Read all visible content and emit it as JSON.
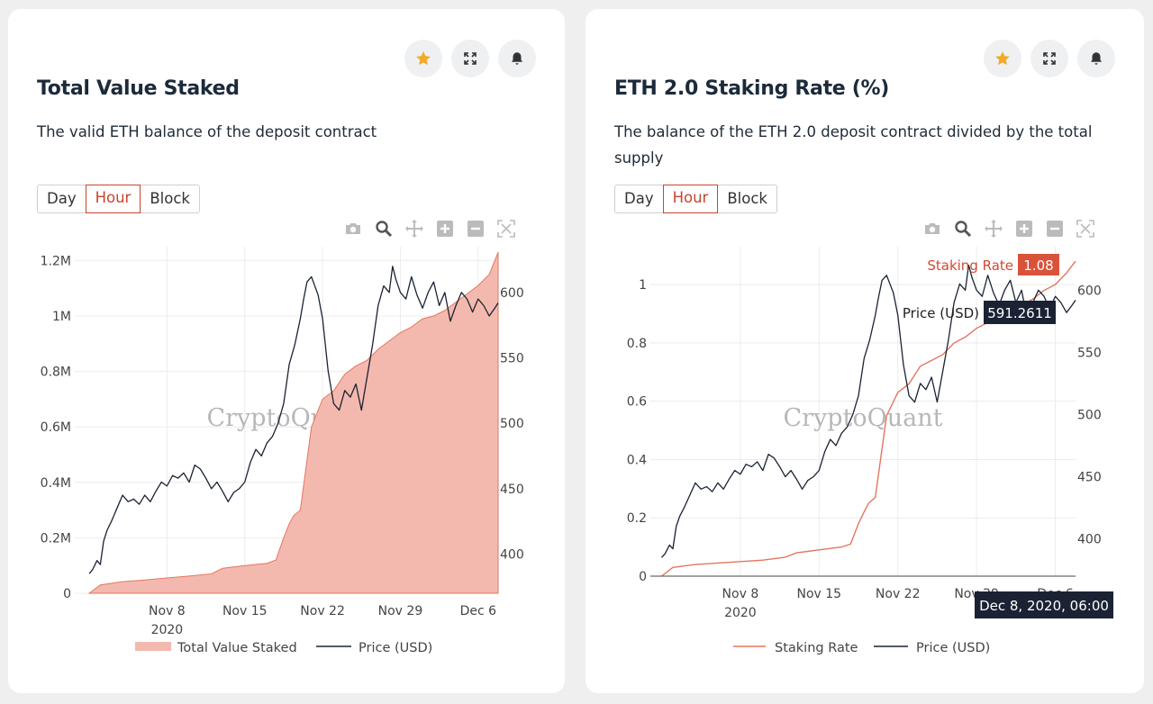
{
  "cards": [
    {
      "title": "Total Value Staked",
      "description": "The valid ETH balance of the deposit contract",
      "timeframes": [
        "Day",
        "Hour",
        "Block"
      ],
      "active_timeframe": "Hour",
      "actions": [
        "star-icon",
        "expand-icon",
        "bell-icon"
      ],
      "modebar": [
        "camera-icon",
        "zoom-icon",
        "pan-icon",
        "zoom-in-icon",
        "zoom-out-icon",
        "autoscale-icon"
      ]
    },
    {
      "title": "ETH 2.0 Staking Rate (%)",
      "description": "The balance of the ETH 2.0 deposit contract divided by the total supply",
      "timeframes": [
        "Day",
        "Hour",
        "Block"
      ],
      "active_timeframe": "Hour",
      "actions": [
        "star-icon",
        "expand-icon",
        "bell-icon"
      ],
      "modebar": [
        "camera-icon",
        "zoom-icon",
        "pan-icon",
        "zoom-in-icon",
        "zoom-out-icon",
        "autoscale-icon"
      ]
    }
  ],
  "watermark": "CryptoQuant",
  "colors": {
    "accent": "#c8452d",
    "area_fill": "#f4b9ae",
    "line": "#e2775f",
    "price": "#1a2233",
    "star": "#f4a927"
  },
  "chart_data": [
    {
      "type": "area",
      "x_ticks": [
        "Nov 8",
        "Nov 15",
        "Nov 22",
        "Nov 29",
        "Dec 6"
      ],
      "x_tick_year": "2020",
      "y_left_ticks": [
        "0",
        "0.2M",
        "0.4M",
        "0.6M",
        "0.8M",
        "1M",
        "1.2M"
      ],
      "y_right_ticks": [
        "400",
        "450",
        "500",
        "550",
        "600"
      ],
      "ylim_left": [
        0,
        1250000
      ],
      "ylim_right": [
        370,
        635
      ],
      "series": [
        {
          "name": "Total Value Staked",
          "axis": "left",
          "x": [
            0,
            1,
            3,
            5,
            7,
            9,
            11,
            12,
            14,
            16,
            16.8,
            17.5,
            18,
            18.4,
            19,
            20,
            21,
            22,
            23,
            24,
            25,
            26,
            27,
            28,
            29,
            30,
            31,
            32,
            33,
            34,
            35,
            36,
            36.8
          ],
          "values": [
            0,
            30000,
            42000,
            48000,
            55000,
            62000,
            70000,
            90000,
            100000,
            108000,
            120000,
            200000,
            250000,
            280000,
            300000,
            600000,
            700000,
            730000,
            790000,
            820000,
            840000,
            880000,
            910000,
            940000,
            960000,
            990000,
            1000000,
            1020000,
            1050000,
            1080000,
            1110000,
            1150000,
            1230000
          ]
        },
        {
          "name": "Price (USD)",
          "axis": "right",
          "x": [
            0,
            0.3,
            0.7,
            1,
            1.3,
            1.6,
            2,
            2.5,
            3,
            3.5,
            4,
            4.5,
            5,
            5.5,
            6,
            6.5,
            7,
            7.5,
            8,
            8.5,
            9,
            9.5,
            10,
            10.5,
            11,
            11.5,
            12,
            12.5,
            13,
            13.5,
            14,
            14.5,
            15,
            15.5,
            16,
            16.5,
            17,
            17.5,
            18,
            18.5,
            19,
            19.3,
            19.6,
            20,
            20.3,
            20.6,
            21,
            21.5,
            22,
            22.5,
            23,
            23.5,
            24,
            24.5,
            25,
            25.5,
            26,
            26.5,
            27,
            27.3,
            27.6,
            28,
            28.5,
            29,
            29.5,
            30,
            30.5,
            31,
            31.5,
            32,
            32.5,
            33,
            33.5,
            34,
            34.5,
            35,
            35.5,
            36,
            36.5,
            36.8
          ],
          "values": [
            385,
            388,
            395,
            392,
            410,
            418,
            425,
            435,
            445,
            440,
            442,
            438,
            445,
            440,
            448,
            455,
            452,
            460,
            458,
            462,
            455,
            468,
            465,
            458,
            450,
            455,
            448,
            440,
            447,
            450,
            455,
            470,
            480,
            475,
            485,
            490,
            500,
            515,
            545,
            560,
            580,
            595,
            608,
            612,
            605,
            598,
            580,
            540,
            515,
            510,
            525,
            520,
            530,
            510,
            535,
            560,
            590,
            605,
            600,
            620,
            610,
            600,
            595,
            612,
            598,
            588,
            600,
            608,
            590,
            600,
            578,
            590,
            600,
            595,
            585,
            595,
            590,
            582,
            588,
            592
          ]
        }
      ],
      "legend": [
        "Total Value Staked",
        "Price (USD)"
      ]
    },
    {
      "type": "line",
      "x_ticks": [
        "Nov 8",
        "Nov 15",
        "Nov 22",
        "Nov 29",
        "Dec 6"
      ],
      "x_tick_year": "2020",
      "y_left_ticks": [
        "0",
        "0.2",
        "0.4",
        "0.6",
        "0.8",
        "1"
      ],
      "y_right_ticks": [
        "400",
        "450",
        "500",
        "550",
        "600"
      ],
      "ylim_left": [
        0,
        1.13
      ],
      "ylim_right": [
        370,
        635
      ],
      "series": [
        {
          "name": "Staking Rate",
          "axis": "left",
          "x": [
            0,
            1,
            3,
            5,
            7,
            9,
            11,
            12,
            14,
            16,
            16.8,
            17.5,
            18,
            18.4,
            19,
            20,
            21,
            22,
            23,
            24,
            25,
            26,
            27,
            28,
            29,
            30,
            31,
            32,
            33,
            34,
            35,
            36,
            36.8
          ],
          "values": [
            0,
            0.03,
            0.04,
            0.045,
            0.05,
            0.055,
            0.065,
            0.08,
            0.09,
            0.1,
            0.11,
            0.18,
            0.22,
            0.25,
            0.27,
            0.55,
            0.63,
            0.66,
            0.72,
            0.74,
            0.76,
            0.8,
            0.82,
            0.85,
            0.87,
            0.9,
            0.91,
            0.93,
            0.95,
            0.98,
            1.0,
            1.04,
            1.08
          ]
        },
        {
          "name": "Price (USD)",
          "axis": "right",
          "x": [
            0,
            0.3,
            0.7,
            1,
            1.3,
            1.6,
            2,
            2.5,
            3,
            3.5,
            4,
            4.5,
            5,
            5.5,
            6,
            6.5,
            7,
            7.5,
            8,
            8.5,
            9,
            9.5,
            10,
            10.5,
            11,
            11.5,
            12,
            12.5,
            13,
            13.5,
            14,
            14.5,
            15,
            15.5,
            16,
            16.5,
            17,
            17.5,
            18,
            18.5,
            19,
            19.3,
            19.6,
            20,
            20.3,
            20.6,
            21,
            21.5,
            22,
            22.5,
            23,
            23.5,
            24,
            24.5,
            25,
            25.5,
            26,
            26.5,
            27,
            27.3,
            27.6,
            28,
            28.5,
            29,
            29.5,
            30,
            30.5,
            31,
            31.5,
            32,
            32.5,
            33,
            33.5,
            34,
            34.5,
            35,
            35.5,
            36,
            36.5,
            36.8
          ],
          "values": [
            385,
            388,
            395,
            392,
            410,
            418,
            425,
            435,
            445,
            440,
            442,
            438,
            445,
            440,
            448,
            455,
            452,
            460,
            458,
            462,
            455,
            468,
            465,
            458,
            450,
            455,
            448,
            440,
            447,
            450,
            455,
            470,
            480,
            475,
            485,
            490,
            500,
            515,
            545,
            560,
            580,
            595,
            608,
            612,
            605,
            598,
            580,
            540,
            515,
            510,
            525,
            520,
            530,
            510,
            535,
            560,
            590,
            605,
            600,
            620,
            610,
            600,
            595,
            612,
            598,
            588,
            600,
            608,
            590,
            600,
            578,
            590,
            600,
            595,
            585,
            595,
            590,
            582,
            588,
            592
          ]
        }
      ],
      "legend": [
        "Staking Rate",
        "Price (USD)"
      ],
      "hover": {
        "x_label": "Dec 8, 2020, 06:00",
        "staking_label": "Staking Rate",
        "staking_value": "1.08",
        "price_label": "Price (USD)",
        "price_value": "591.2611"
      }
    }
  ]
}
